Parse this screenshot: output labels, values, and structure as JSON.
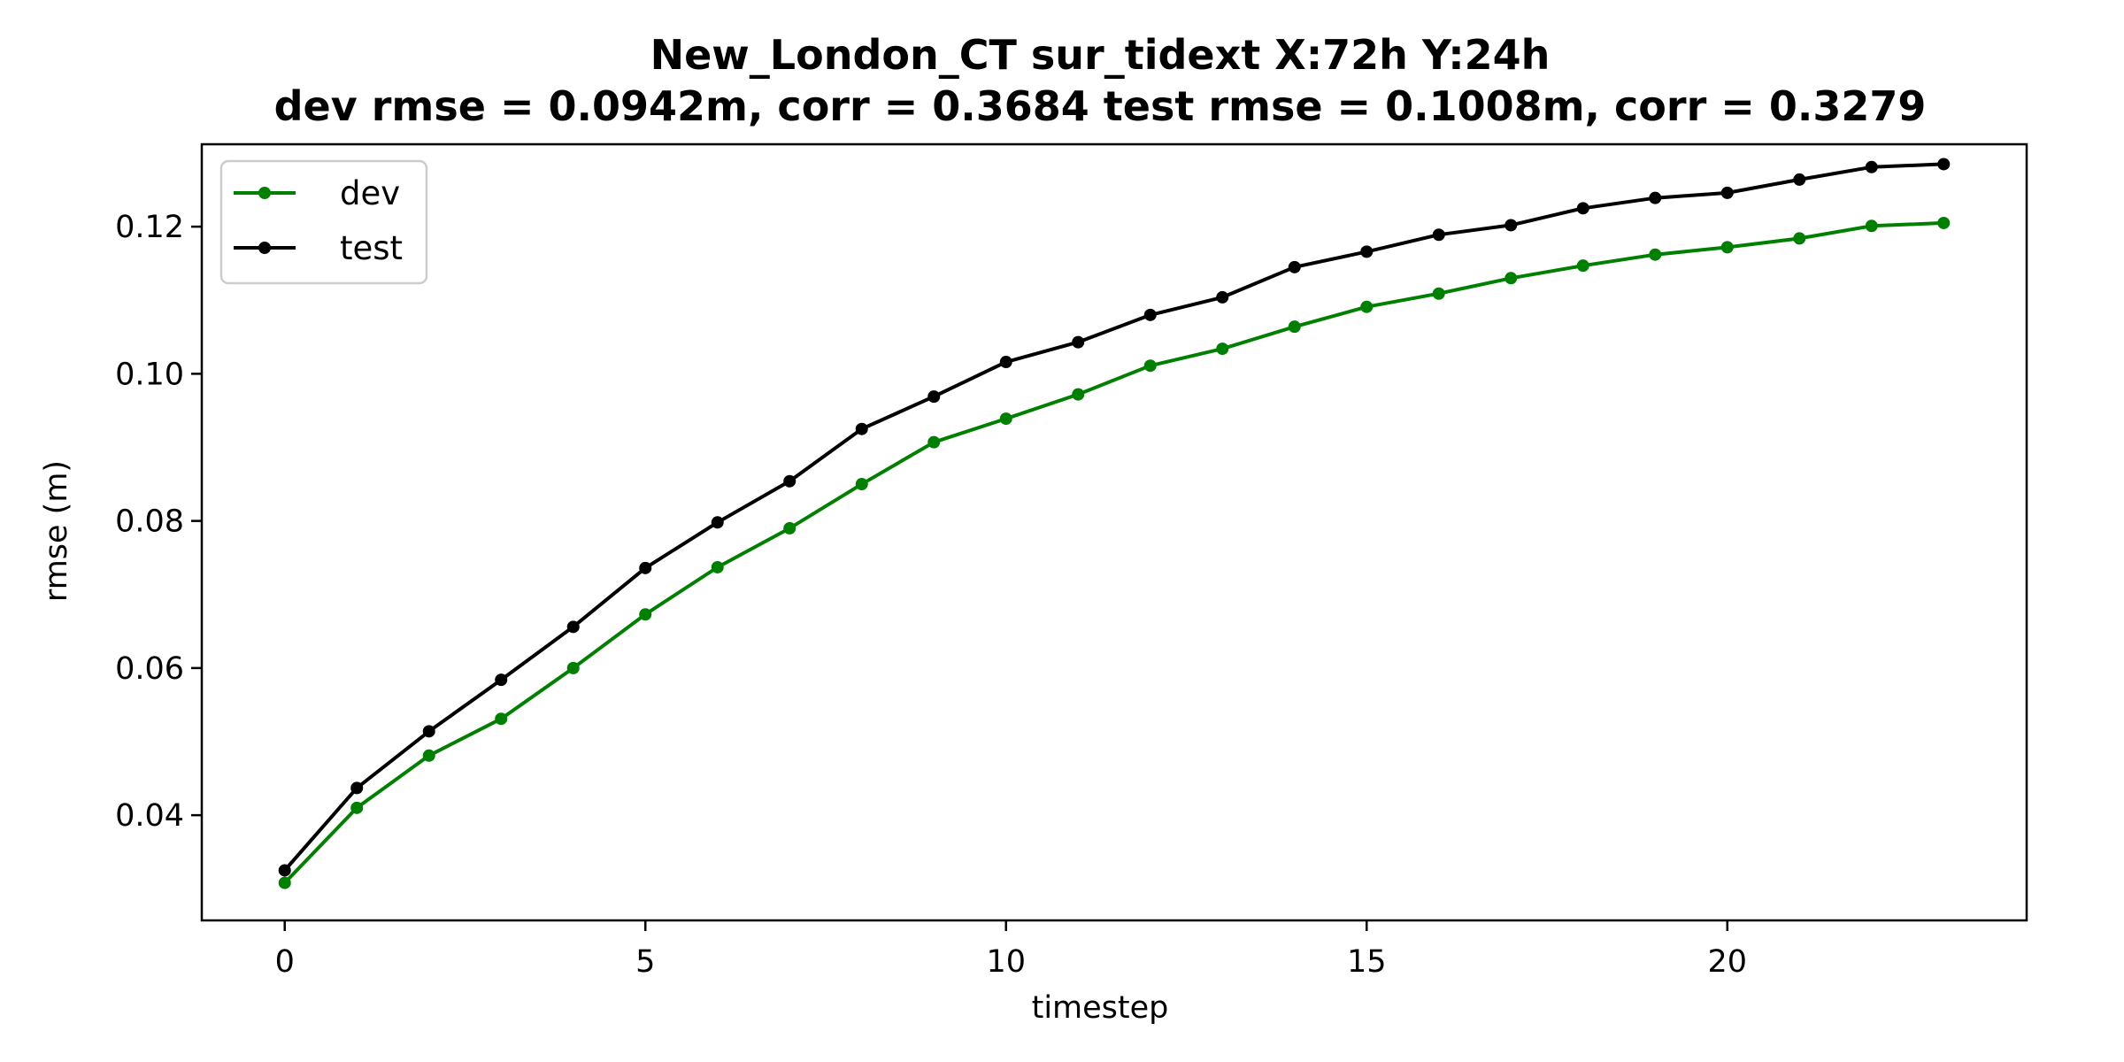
{
  "chart_data": {
    "type": "line",
    "title": "New_London_CT   sur_tidext   X:72h   Y:24h",
    "subtitle": "dev rmse = 0.0942m, corr = 0.3684   test rmse = 0.1008m, corr = 0.3279",
    "xlabel": "timestep",
    "ylabel": "rmse (m)",
    "xlim": [
      -1.15,
      24.15
    ],
    "ylim": [
      0.0257,
      0.1312
    ],
    "xticks": [
      0,
      5,
      10,
      15,
      20
    ],
    "yticks": [
      0.04,
      0.06,
      0.08,
      0.1,
      0.12
    ],
    "ytick_labels": [
      "0.04",
      "0.06",
      "0.08",
      "0.10",
      "0.12"
    ],
    "grid": false,
    "legend": "upper-left",
    "x": [
      0,
      1,
      2,
      3,
      4,
      5,
      6,
      7,
      8,
      9,
      10,
      11,
      12,
      13,
      14,
      15,
      16,
      17,
      18,
      19,
      20,
      21,
      22,
      23
    ],
    "series": [
      {
        "name": "dev",
        "color": "#008000",
        "values": [
          0.0308,
          0.041,
          0.0481,
          0.0531,
          0.06,
          0.0673,
          0.0737,
          0.079,
          0.085,
          0.0907,
          0.0939,
          0.0972,
          0.1011,
          0.1034,
          0.1064,
          0.1091,
          0.1109,
          0.113,
          0.1147,
          0.1162,
          0.1172,
          0.1184,
          0.1201,
          0.1205
        ]
      },
      {
        "name": "test",
        "color": "#000000",
        "values": [
          0.0325,
          0.0437,
          0.0514,
          0.0584,
          0.0656,
          0.0736,
          0.0798,
          0.0854,
          0.0925,
          0.0969,
          0.1016,
          0.1043,
          0.108,
          0.1104,
          0.1145,
          0.1166,
          0.1189,
          0.1202,
          0.1225,
          0.1239,
          0.1246,
          0.1264,
          0.1281,
          0.1285
        ]
      }
    ]
  }
}
